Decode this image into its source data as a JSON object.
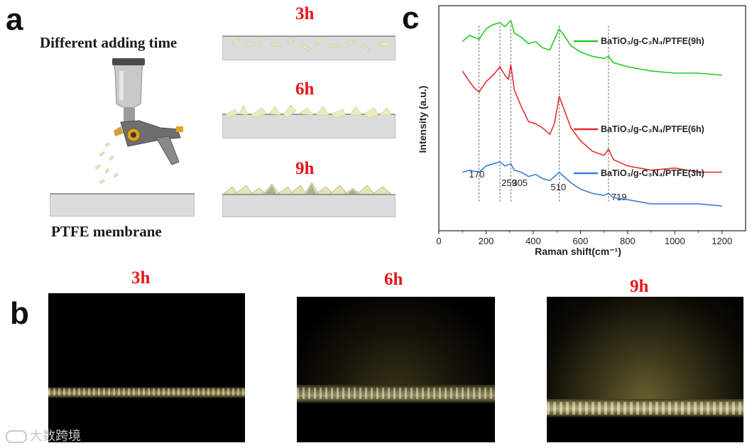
{
  "panel_a": {
    "letter": "a",
    "title": "Different adding time",
    "substrate_label": "PTFE membrane",
    "times": [
      "3h",
      "6h",
      "9h"
    ]
  },
  "panel_b": {
    "letter": "b",
    "times": [
      "3h",
      "6h",
      "9h"
    ]
  },
  "panel_c": {
    "letter": "c"
  },
  "chart_data": {
    "type": "line",
    "title": "",
    "xlabel": "Raman shift(cm⁻¹)",
    "ylabel": "Intensity (a.u.)",
    "xlim": [
      0,
      1300
    ],
    "ylim": [
      0,
      100
    ],
    "xticks": [
      0,
      200,
      400,
      600,
      800,
      1000,
      1200
    ],
    "xtick_labels": [
      "0",
      "200",
      "400",
      "600",
      "800",
      "1000",
      "1200"
    ],
    "peak_lines": [
      170,
      259,
      305,
      510,
      719
    ],
    "peak_labels": [
      "170",
      "259",
      "305",
      "510",
      "719"
    ],
    "series": [
      {
        "name": "BaTiO₃/g-C₃N₄/PTFE(9h)",
        "color": "#22cc22",
        "x": [
          100,
          130,
          170,
          200,
          230,
          259,
          280,
          305,
          320,
          350,
          380,
          410,
          440,
          470,
          490,
          510,
          530,
          560,
          600,
          650,
          700,
          719,
          740,
          800,
          900,
          1000,
          1100,
          1200
        ],
        "y": [
          83,
          86,
          84,
          89,
          91,
          92,
          90,
          93,
          87,
          85,
          82,
          83,
          80,
          79,
          84,
          89,
          86,
          81,
          78,
          76,
          75,
          76,
          73,
          71,
          69,
          68,
          68,
          67
        ]
      },
      {
        "name": "BaTiO₃/g-C₃N₄/PTFE(6h)",
        "color": "#e03030",
        "x": [
          100,
          130,
          150,
          170,
          200,
          230,
          259,
          280,
          295,
          305,
          320,
          350,
          380,
          410,
          440,
          470,
          490,
          510,
          530,
          560,
          600,
          650,
          700,
          719,
          740,
          800,
          900,
          1000,
          1100,
          1200
        ],
        "y": [
          69,
          64,
          61,
          59,
          64,
          67,
          71,
          67,
          65,
          72,
          60,
          52,
          45,
          44,
          42,
          39,
          44,
          57,
          51,
          42,
          36,
          31,
          29,
          32,
          27,
          24,
          22,
          23,
          21,
          21
        ]
      },
      {
        "name": "BaTiO₃/g-C₃N₄/PTFE(3h)",
        "color": "#3a7fd6",
        "x": [
          100,
          130,
          170,
          200,
          230,
          259,
          280,
          305,
          320,
          350,
          380,
          410,
          440,
          470,
          490,
          510,
          530,
          560,
          600,
          650,
          700,
          719,
          740,
          800,
          900,
          1000,
          1100,
          1200
        ],
        "y": [
          21,
          22,
          21,
          24,
          25,
          26,
          24,
          25,
          22,
          21,
          19,
          20,
          18,
          17,
          19,
          21,
          19,
          16,
          13,
          11,
          10,
          11,
          9,
          8,
          6,
          6,
          6,
          5
        ]
      }
    ],
    "legend_position": "right"
  },
  "watermark": {
    "text": "大数跨境"
  }
}
